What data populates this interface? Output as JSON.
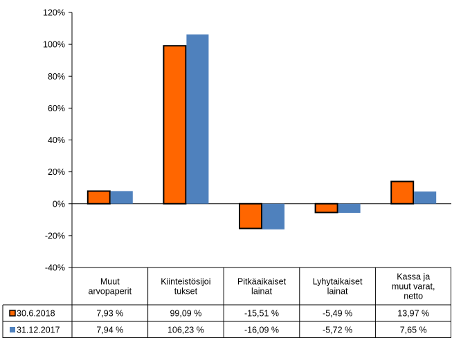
{
  "chart_data": {
    "type": "bar",
    "categories": [
      [
        "Muut",
        "arvopaperit"
      ],
      [
        "Kiinteistösijoi",
        "tukset"
      ],
      [
        "Pitkäaikaiset",
        "lainat"
      ],
      [
        "Lyhytaikaiset",
        "lainat"
      ],
      [
        "Kassa ja",
        "muut varat,",
        "netto"
      ]
    ],
    "series": [
      {
        "name": "30.6.2018",
        "color": "#FF6600",
        "values": [
          7.93,
          99.09,
          -15.51,
          -5.49,
          13.97
        ],
        "labels": [
          "7,93 %",
          "99,09 %",
          "-15,51 %",
          "-5,49 %",
          "13,97 %"
        ]
      },
      {
        "name": "31.12.2017",
        "color": "#4F81BD",
        "values": [
          7.94,
          106.23,
          -16.09,
          -5.72,
          7.65
        ],
        "labels": [
          "7,94 %",
          "106,23 %",
          "-16,09 %",
          "-5,72 %",
          "7,65 %"
        ]
      }
    ],
    "ylim": [
      -40,
      120
    ],
    "yticks": [
      -40,
      -20,
      0,
      20,
      40,
      60,
      80,
      100,
      120
    ],
    "ytick_labels": [
      "-40%",
      "-20%",
      "0%",
      "20%",
      "40%",
      "60%",
      "80%",
      "100%",
      "120%"
    ],
    "grid": false,
    "legend": "data-table"
  }
}
